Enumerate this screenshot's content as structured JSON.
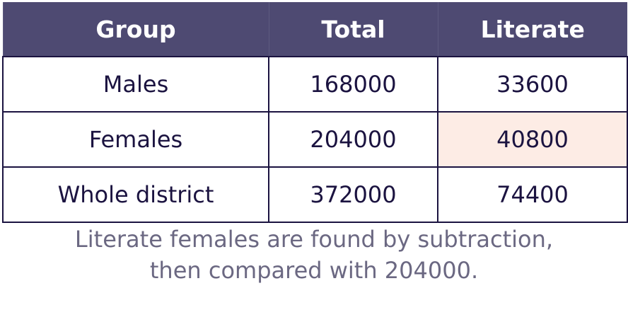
{
  "table": {
    "header": [
      "Group",
      "Total",
      "Literate"
    ],
    "rows": [
      [
        "Males",
        168000,
        33600
      ],
      [
        "Females",
        204000,
        40800
      ],
      [
        "Whole district",
        372000,
        74400
      ]
    ],
    "highlight": {
      "row": 1,
      "col": 2,
      "color": "#fdece5"
    }
  },
  "caption": [
    "Literate females are found by subtraction,",
    "then compared with 204000."
  ]
}
